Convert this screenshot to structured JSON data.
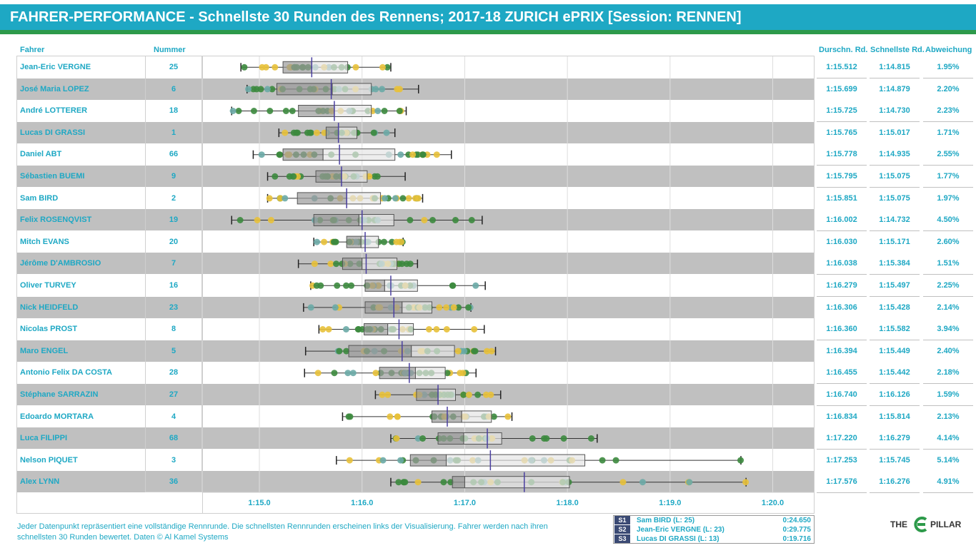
{
  "title": "FAHRER-PERFORMANCE - Schnellste 30 Runden des Rennens; 2017-18 ZURICH ePRIX [Session: RENNEN]",
  "headers": {
    "driver": "Fahrer",
    "number": "Nummer",
    "avg": "Durschn. Rd.",
    "best": "Schnellste Rd.",
    "dev": "Abweichung"
  },
  "colors": {
    "accent": "#1ea8c4",
    "green": "#2d9a4a",
    "band_dark": "#c0c0c0",
    "dot_green": "#3c8a3e",
    "dot_teal": "#6aaaa6",
    "dot_yellow": "#e8c13a",
    "median_line": "#4a3fa0",
    "legend_tag": "#3b4a74"
  },
  "chart_data": {
    "type": "boxplot",
    "x_axis": {
      "tick_labels": [
        "1:15.0",
        "1:16.0",
        "1:17.0",
        "1:18.0",
        "1:19.0",
        "1:20.0"
      ],
      "tick_values": [
        75,
        76,
        77,
        78,
        79,
        80
      ],
      "range": [
        74.45,
        80.4
      ],
      "unit": "seconds"
    },
    "drivers": [
      {
        "name": "Jean-Eric VERGNE",
        "number": "25",
        "avg": "1:15.512",
        "best": "1:14.815",
        "dev": "1.95%",
        "min": 74.82,
        "q1": 75.23,
        "median": 75.51,
        "q3": 75.86,
        "max": 76.28,
        "mean": 75.51
      },
      {
        "name": "José Maria LOPEZ",
        "number": "6",
        "avg": "1:15.699",
        "best": "1:14.879",
        "dev": "2.20%",
        "min": 74.88,
        "q1": 75.17,
        "median": 75.71,
        "q3": 76.09,
        "max": 76.55,
        "mean": 75.7
      },
      {
        "name": "André LOTTERER",
        "number": "18",
        "avg": "1:15.725",
        "best": "1:14.730",
        "dev": "2.23%",
        "min": 74.73,
        "q1": 75.38,
        "median": 75.73,
        "q3": 76.09,
        "max": 76.43,
        "mean": 75.73
      },
      {
        "name": "Lucas DI GRASSI",
        "number": "1",
        "avg": "1:15.765",
        "best": "1:15.017",
        "dev": "1.71%",
        "min": 75.19,
        "q1": 75.65,
        "median": 75.77,
        "q3": 75.95,
        "max": 76.32,
        "mean": 75.77
      },
      {
        "name": "Daniel ABT",
        "number": "66",
        "avg": "1:15.778",
        "best": "1:14.935",
        "dev": "2.55%",
        "min": 74.94,
        "q1": 75.23,
        "median": 75.62,
        "q3": 76.32,
        "max": 76.87,
        "mean": 75.78
      },
      {
        "name": "Sébastien BUEMI",
        "number": "9",
        "avg": "1:15.795",
        "best": "1:15.075",
        "dev": "1.77%",
        "min": 75.08,
        "q1": 75.55,
        "median": 75.8,
        "q3": 76.05,
        "max": 76.42,
        "mean": 75.8
      },
      {
        "name": "Sam BIRD",
        "number": "2",
        "avg": "1:15.851",
        "best": "1:15.075",
        "dev": "1.97%",
        "min": 75.08,
        "q1": 75.37,
        "median": 75.85,
        "q3": 76.18,
        "max": 76.59,
        "mean": 75.85
      },
      {
        "name": "Felix ROSENQVIST",
        "number": "19",
        "avg": "1:16.002",
        "best": "1:14.732",
        "dev": "4.50%",
        "min": 74.73,
        "q1": 75.53,
        "median": 75.97,
        "q3": 76.31,
        "max": 77.17,
        "mean": 76.0
      },
      {
        "name": "Mitch EVANS",
        "number": "20",
        "avg": "1:16.030",
        "best": "1:15.171",
        "dev": "2.60%",
        "min": 75.53,
        "q1": 75.85,
        "median": 75.99,
        "q3": 76.16,
        "max": 76.4,
        "mean": 76.03
      },
      {
        "name": "Jérôme D'AMBROSIO",
        "number": "7",
        "avg": "1:16.038",
        "best": "1:15.384",
        "dev": "1.51%",
        "min": 75.38,
        "q1": 75.81,
        "median": 76.0,
        "q3": 76.34,
        "max": 76.54,
        "mean": 76.04
      },
      {
        "name": "Oliver TURVEY",
        "number": "16",
        "avg": "1:16.279",
        "best": "1:15.497",
        "dev": "2.25%",
        "min": 75.5,
        "q1": 76.03,
        "median": 76.22,
        "q3": 76.54,
        "max": 77.2,
        "mean": 76.28
      },
      {
        "name": "Nick HEIDFELD",
        "number": "23",
        "avg": "1:16.306",
        "best": "1:15.428",
        "dev": "2.14%",
        "min": 75.43,
        "q1": 76.03,
        "median": 76.39,
        "q3": 76.68,
        "max": 77.06,
        "mean": 76.31
      },
      {
        "name": "Nicolas PROST",
        "number": "8",
        "avg": "1:16.360",
        "best": "1:15.582",
        "dev": "3.94%",
        "min": 75.58,
        "q1": 76.02,
        "median": 76.25,
        "q3": 76.5,
        "max": 77.19,
        "mean": 76.36
      },
      {
        "name": "Maro ENGEL",
        "number": "5",
        "avg": "1:16.394",
        "best": "1:15.449",
        "dev": "2.40%",
        "min": 75.45,
        "q1": 75.87,
        "median": 76.48,
        "q3": 76.9,
        "max": 77.3,
        "mean": 76.39
      },
      {
        "name": "Antonio Felix DA COSTA",
        "number": "28",
        "avg": "1:16.455",
        "best": "1:15.442",
        "dev": "2.18%",
        "min": 75.44,
        "q1": 76.17,
        "median": 76.52,
        "q3": 76.81,
        "max": 77.11,
        "mean": 76.46
      },
      {
        "name": "Stéphane SARRAZIN",
        "number": "27",
        "avg": "1:16.740",
        "best": "1:16.126",
        "dev": "1.59%",
        "min": 76.13,
        "q1": 76.53,
        "median": 76.74,
        "q3": 76.91,
        "max": 77.35,
        "mean": 76.74
      },
      {
        "name": "Edoardo MORTARA",
        "number": "4",
        "avg": "1:16.834",
        "best": "1:15.814",
        "dev": "2.13%",
        "min": 75.81,
        "q1": 76.68,
        "median": 76.97,
        "q3": 77.26,
        "max": 77.46,
        "mean": 76.83
      },
      {
        "name": "Luca FILIPPI",
        "number": "68",
        "avg": "1:17.220",
        "best": "1:16.279",
        "dev": "4.14%",
        "min": 76.28,
        "q1": 76.74,
        "median": 76.99,
        "q3": 77.36,
        "max": 78.29,
        "mean": 77.22
      },
      {
        "name": "Nelson PIQUET",
        "number": "3",
        "avg": "1:17.253",
        "best": "1:15.745",
        "dev": "5.14%",
        "min": 75.75,
        "q1": 76.47,
        "median": 76.82,
        "q3": 78.17,
        "max": 79.69,
        "mean": 77.25
      },
      {
        "name": "Alex LYNN",
        "number": "36",
        "avg": "1:17.576",
        "best": "1:16.276",
        "dev": "4.91%",
        "min": 76.28,
        "q1": 76.88,
        "median": 77.0,
        "q3": 78.02,
        "max": 79.74,
        "mean": 77.58
      }
    ]
  },
  "footer": {
    "note": "Jeder Datenpunkt repräsentiert eine vollständige Rennrunde. Die schnellsten Rennrunden erscheinen links der Visualisierung. Fahrer werden nach ihren schnellsten 30 Runden bewertet. Daten © Al Kamel Systems",
    "sectors": [
      {
        "tag": "S1",
        "driver": "Sam BIRD (L: 25)",
        "time": "0:24.650"
      },
      {
        "tag": "S2",
        "driver": "Jean-Eric VERGNE (L: 23)",
        "time": "0:29.775"
      },
      {
        "tag": "S3",
        "driver": "Lucas DI GRASSI (L: 13)",
        "time": "0:19.716"
      }
    ]
  },
  "logo": {
    "left": "THE",
    "right": "PILLAR",
    "icon": "e-pillar-logo-icon"
  }
}
